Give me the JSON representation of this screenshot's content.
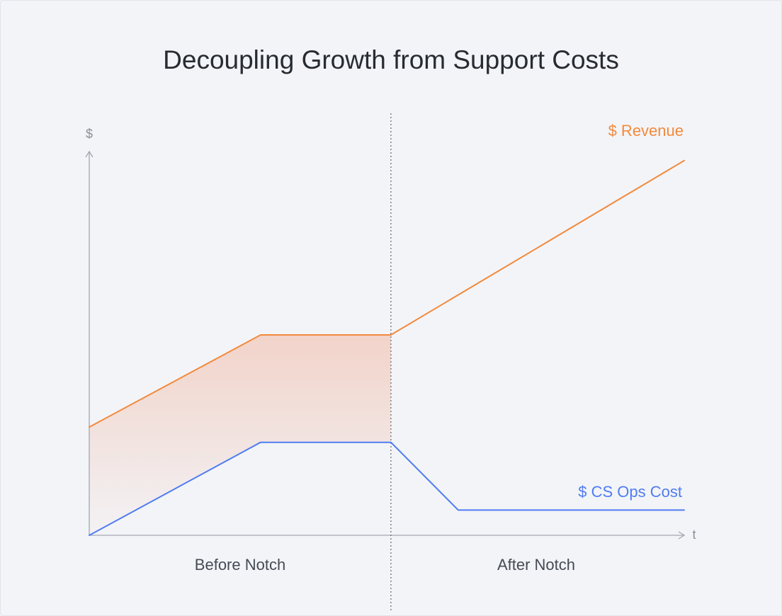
{
  "chart_data": {
    "type": "line",
    "title": "Decoupling Growth from Support Costs",
    "ylabel": "$",
    "xlabel": "t",
    "xlim": [
      0,
      1
    ],
    "ylim": [
      0,
      1
    ],
    "grid": false,
    "sections": [
      "Before Notch",
      "After Notch"
    ],
    "divider_x": 0.507,
    "series": [
      {
        "name": "$ Revenue",
        "color": "#f28a3c",
        "x": [
          0,
          0.288,
          0.507,
          1.0
        ],
        "y": [
          0.27,
          0.5,
          0.5,
          0.935
        ]
      },
      {
        "name": "$ CS Ops Cost",
        "color": "#4f7cf2",
        "x": [
          0,
          0.288,
          0.507,
          0.62,
          1.0
        ],
        "y": [
          0.0,
          0.232,
          0.232,
          0.063,
          0.063
        ]
      }
    ],
    "shaded_gap": {
      "between": [
        "$ Revenue",
        "$ CS Ops Cost"
      ],
      "x_range": [
        0,
        0.507
      ],
      "color": "#f0a78a"
    },
    "axis_color": "#a3a7ae",
    "divider_color": "#6b7079"
  }
}
